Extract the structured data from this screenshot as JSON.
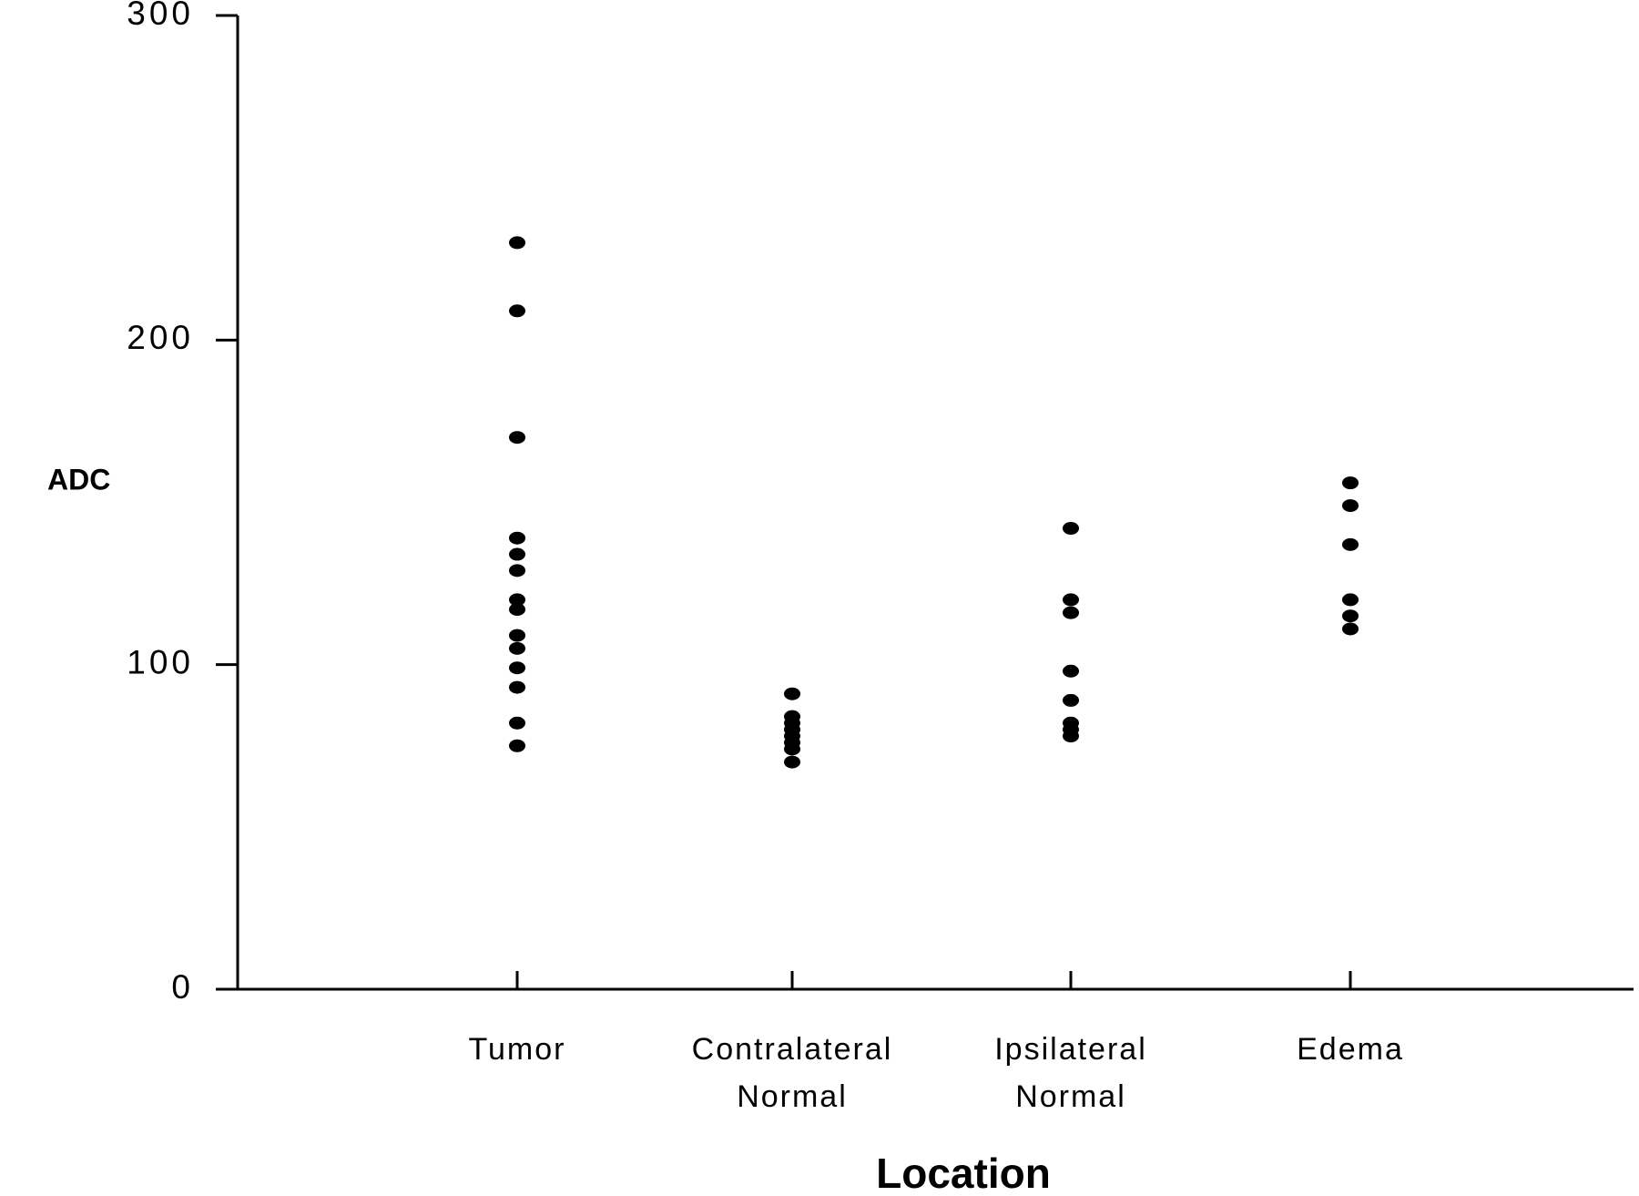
{
  "chart_data": {
    "type": "strip",
    "x_label": "Location",
    "y_label": "ADC",
    "categories": [
      "Tumor",
      "Contralateral Normal",
      "Ipsilateral Normal",
      "Edema"
    ],
    "values": [
      [
        230,
        209,
        170,
        139,
        134,
        129,
        120,
        117,
        109,
        105,
        99,
        93,
        82,
        75
      ],
      [
        91,
        84,
        82,
        80,
        78,
        76,
        74,
        70
      ],
      [
        142,
        120,
        116,
        98,
        89,
        82,
        80,
        78
      ],
      [
        156,
        149,
        137,
        120,
        115,
        111
      ]
    ],
    "color": "#000000",
    "ylim": [
      0,
      300
    ],
    "yticks": [
      0,
      100,
      200,
      300
    ],
    "grid": false
  }
}
